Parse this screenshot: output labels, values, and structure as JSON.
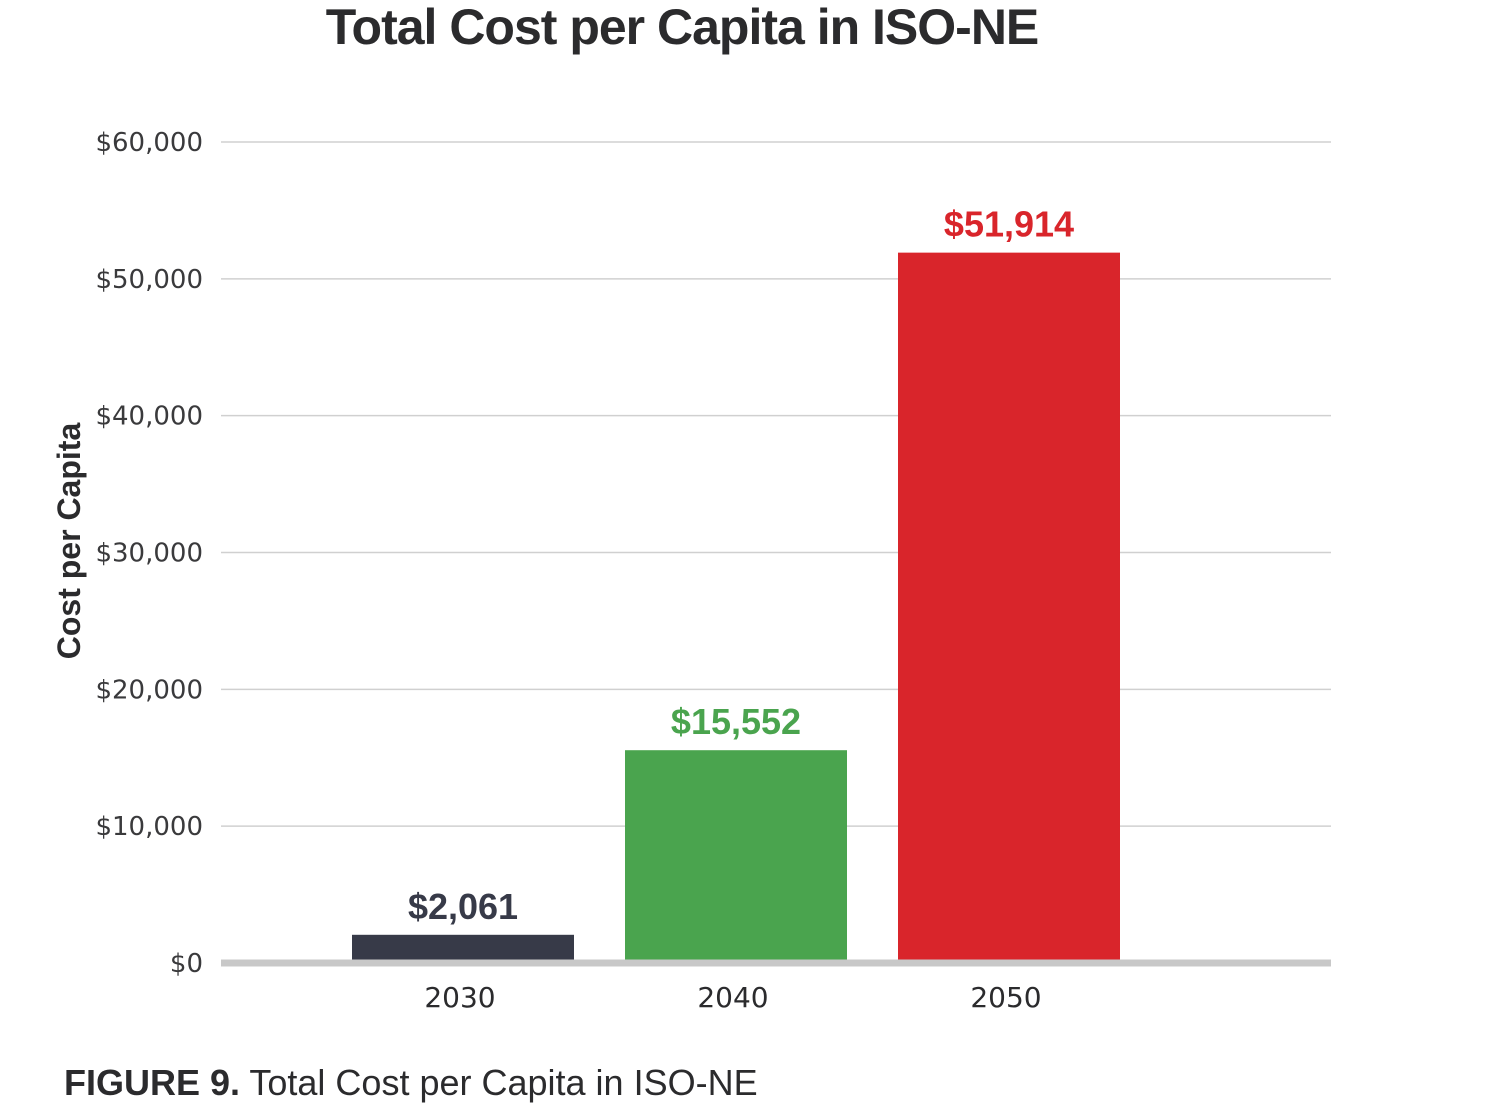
{
  "chart_data": {
    "type": "bar",
    "title": "Total Cost per Capita in ISO-NE",
    "xlabel": "",
    "ylabel": "Cost per Capita",
    "categories": [
      "2030",
      "2040",
      "2050"
    ],
    "values": [
      2061,
      15552,
      51914
    ],
    "data_labels": [
      "$2,061",
      "$15,552",
      "$51,914"
    ],
    "bar_colors": [
      "#373a48",
      "#4aa44e",
      "#d9252b"
    ],
    "ylim": [
      0,
      60000
    ],
    "yticks": [
      0,
      10000,
      20000,
      30000,
      40000,
      50000,
      60000
    ],
    "ytick_labels": [
      "$0",
      "$10,000",
      "$20,000",
      "$30,000",
      "$40,000",
      "$50,000",
      "$60,000"
    ],
    "grid": true,
    "legend": "none"
  },
  "caption": {
    "label": "FIGURE 9.",
    "text": " Total Cost per Capita in ISO-NE"
  }
}
